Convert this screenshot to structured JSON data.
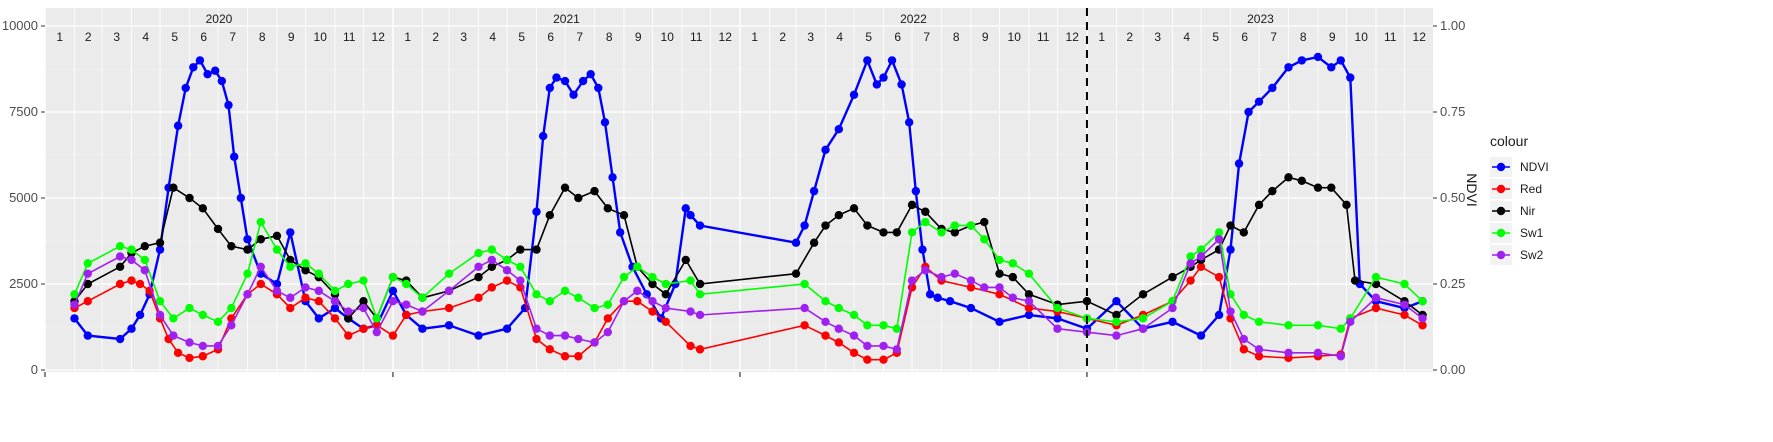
{
  "chart_data": {
    "type": "line",
    "title": "",
    "xlabel": "",
    "ylabel": "",
    "y2label": "NDVI",
    "ylim": [
      0,
      10000
    ],
    "y2lim": [
      0,
      1
    ],
    "xlim": [
      "2020-01-01",
      "2023-12-31"
    ],
    "y_ticks": [
      "0",
      "2500",
      "5000",
      "7500",
      "10000"
    ],
    "y2_ticks": [
      "0.00",
      "0.25",
      "0.50",
      "0.75",
      "1.00"
    ],
    "grid": true,
    "years": [
      "2020",
      "2021",
      "2022",
      "2023"
    ],
    "months": [
      "1",
      "2",
      "3",
      "4",
      "5",
      "6",
      "7",
      "8",
      "9",
      "10",
      "11",
      "12"
    ],
    "vline_date": "2023-01-01",
    "legend": {
      "title": "colour",
      "position": "right"
    },
    "series": [
      {
        "name": "NDVI",
        "color": "#0000ff",
        "axis": "right",
        "x": [
          "2020-02-01",
          "2020-02-15",
          "2020-03-20",
          "2020-04-01",
          "2020-04-10",
          "2020-04-20",
          "2020-05-01",
          "2020-05-10",
          "2020-05-20",
          "2020-05-28",
          "2020-06-05",
          "2020-06-12",
          "2020-06-20",
          "2020-06-28",
          "2020-07-05",
          "2020-07-12",
          "2020-07-18",
          "2020-07-25",
          "2020-08-01",
          "2020-08-15",
          "2020-09-01",
          "2020-09-15",
          "2020-10-01",
          "2020-10-15",
          "2020-11-01",
          "2020-11-15",
          "2020-12-01",
          "2020-12-15",
          "2021-01-01",
          "2021-01-15",
          "2021-02-01",
          "2021-03-01",
          "2021-04-01",
          "2021-05-01",
          "2021-05-20",
          "2021-06-01",
          "2021-06-08",
          "2021-06-15",
          "2021-06-22",
          "2021-07-01",
          "2021-07-10",
          "2021-07-20",
          "2021-07-28",
          "2021-08-05",
          "2021-08-12",
          "2021-08-20",
          "2021-08-28",
          "2021-09-10",
          "2021-09-25",
          "2021-10-10",
          "2021-10-25",
          "2021-11-05",
          "2021-11-10",
          "2021-11-20",
          "2022-03-01",
          "2022-03-10",
          "2022-03-20",
          "2022-04-01",
          "2022-04-15",
          "2022-05-01",
          "2022-05-15",
          "2022-05-25",
          "2022-06-01",
          "2022-06-10",
          "2022-06-20",
          "2022-06-28",
          "2022-07-05",
          "2022-07-12",
          "2022-07-20",
          "2022-07-28",
          "2022-08-10",
          "2022-09-01",
          "2022-10-01",
          "2022-11-01",
          "2022-12-01",
          "2023-01-01",
          "2023-02-01",
          "2023-03-01",
          "2023-04-01",
          "2023-05-01",
          "2023-05-20",
          "2023-06-01",
          "2023-06-10",
          "2023-06-20",
          "2023-07-01",
          "2023-07-15",
          "2023-08-01",
          "2023-08-15",
          "2023-09-01",
          "2023-09-15",
          "2023-09-25",
          "2023-10-05",
          "2023-10-15",
          "2023-11-01",
          "2023-12-01",
          "2023-12-20"
        ],
        "values": [
          0.15,
          0.1,
          0.09,
          0.12,
          0.16,
          0.22,
          0.35,
          0.53,
          0.71,
          0.82,
          0.88,
          0.9,
          0.86,
          0.87,
          0.84,
          0.77,
          0.62,
          0.5,
          0.38,
          0.28,
          0.25,
          0.4,
          0.2,
          0.15,
          0.18,
          0.15,
          0.12,
          0.13,
          0.23,
          0.16,
          0.12,
          0.13,
          0.1,
          0.12,
          0.18,
          0.46,
          0.68,
          0.82,
          0.85,
          0.84,
          0.8,
          0.84,
          0.86,
          0.82,
          0.72,
          0.56,
          0.4,
          0.3,
          0.22,
          0.15,
          0.25,
          0.47,
          0.45,
          0.42,
          0.37,
          0.42,
          0.52,
          0.64,
          0.7,
          0.8,
          0.9,
          0.83,
          0.85,
          0.9,
          0.83,
          0.72,
          0.52,
          0.35,
          0.22,
          0.21,
          0.2,
          0.18,
          0.14,
          0.16,
          0.15,
          0.12,
          0.2,
          0.12,
          0.14,
          0.1,
          0.16,
          0.35,
          0.6,
          0.75,
          0.78,
          0.82,
          0.88,
          0.9,
          0.91,
          0.88,
          0.9,
          0.85,
          0.25,
          0.2,
          0.18,
          0.2
        ]
      },
      {
        "name": "Red",
        "color": "#ff0000",
        "axis": "left",
        "x": [
          "2020-02-01",
          "2020-02-15",
          "2020-03-20",
          "2020-04-01",
          "2020-04-10",
          "2020-04-20",
          "2020-05-01",
          "2020-05-10",
          "2020-05-20",
          "2020-06-01",
          "2020-06-15",
          "2020-07-01",
          "2020-07-15",
          "2020-08-01",
          "2020-08-15",
          "2020-09-01",
          "2020-09-15",
          "2020-10-01",
          "2020-10-15",
          "2020-11-01",
          "2020-11-15",
          "2020-12-01",
          "2020-12-15",
          "2021-01-01",
          "2021-01-15",
          "2021-02-01",
          "2021-03-01",
          "2021-04-01",
          "2021-04-15",
          "2021-05-01",
          "2021-05-15",
          "2021-06-01",
          "2021-06-15",
          "2021-07-01",
          "2021-07-15",
          "2021-08-01",
          "2021-08-15",
          "2021-09-01",
          "2021-09-15",
          "2021-10-01",
          "2021-10-15",
          "2021-11-10",
          "2021-11-20",
          "2022-03-10",
          "2022-04-01",
          "2022-04-15",
          "2022-05-01",
          "2022-05-15",
          "2022-06-01",
          "2022-06-15",
          "2022-07-01",
          "2022-07-15",
          "2022-08-01",
          "2022-09-01",
          "2022-10-01",
          "2022-11-01",
          "2022-12-01",
          "2023-01-01",
          "2023-02-01",
          "2023-03-01",
          "2023-04-01",
          "2023-04-20",
          "2023-05-01",
          "2023-05-20",
          "2023-06-01",
          "2023-06-15",
          "2023-07-01",
          "2023-08-01",
          "2023-09-01",
          "2023-09-25",
          "2023-10-05",
          "2023-11-01",
          "2023-12-01",
          "2023-12-20"
        ],
        "values": [
          1800,
          2000,
          2500,
          2600,
          2500,
          2300,
          1500,
          900,
          500,
          350,
          400,
          600,
          1500,
          2200,
          2500,
          2200,
          1800,
          2100,
          2000,
          1500,
          1000,
          1200,
          1300,
          1000,
          1600,
          1700,
          1800,
          2100,
          2400,
          2600,
          2400,
          900,
          600,
          400,
          400,
          800,
          1500,
          2000,
          2000,
          1700,
          1400,
          700,
          600,
          1300,
          1000,
          800,
          500,
          300,
          300,
          500,
          2400,
          3000,
          2600,
          2400,
          2200,
          1800,
          1700,
          1500,
          1300,
          1600,
          2000,
          2600,
          3000,
          2700,
          1500,
          600,
          400,
          350,
          400,
          450,
          1500,
          1800,
          1600,
          1300
        ]
      },
      {
        "name": "Nir",
        "color": "#000000",
        "axis": "left",
        "x": [
          "2020-02-01",
          "2020-02-15",
          "2020-03-20",
          "2020-04-01",
          "2020-04-15",
          "2020-05-01",
          "2020-05-15",
          "2020-06-01",
          "2020-06-15",
          "2020-07-01",
          "2020-07-15",
          "2020-08-01",
          "2020-08-15",
          "2020-09-01",
          "2020-09-15",
          "2020-10-01",
          "2020-10-15",
          "2020-11-01",
          "2020-11-15",
          "2020-12-01",
          "2020-12-15",
          "2021-01-01",
          "2021-01-15",
          "2021-02-01",
          "2021-03-01",
          "2021-04-01",
          "2021-04-15",
          "2021-05-01",
          "2021-05-15",
          "2021-06-01",
          "2021-06-15",
          "2021-07-01",
          "2021-07-15",
          "2021-08-01",
          "2021-08-15",
          "2021-09-01",
          "2021-09-15",
          "2021-10-01",
          "2021-10-15",
          "2021-11-05",
          "2021-11-20",
          "2022-03-01",
          "2022-03-20",
          "2022-04-01",
          "2022-04-15",
          "2022-05-01",
          "2022-05-15",
          "2022-06-01",
          "2022-06-15",
          "2022-07-01",
          "2022-07-15",
          "2022-08-01",
          "2022-08-15",
          "2022-09-01",
          "2022-09-15",
          "2022-10-01",
          "2022-10-15",
          "2022-11-01",
          "2022-12-01",
          "2023-01-01",
          "2023-02-01",
          "2023-03-01",
          "2023-04-01",
          "2023-04-20",
          "2023-05-01",
          "2023-05-20",
          "2023-06-01",
          "2023-06-15",
          "2023-07-01",
          "2023-07-15",
          "2023-08-01",
          "2023-08-15",
          "2023-09-01",
          "2023-09-15",
          "2023-10-01",
          "2023-10-10",
          "2023-11-01",
          "2023-12-01",
          "2023-12-20"
        ],
        "values": [
          2000,
          2500,
          3000,
          3400,
          3600,
          3700,
          5300,
          5000,
          4700,
          4100,
          3600,
          3500,
          3800,
          3900,
          3200,
          2900,
          2700,
          2200,
          1500,
          2000,
          1500,
          2700,
          2600,
          2100,
          2300,
          2700,
          3000,
          3200,
          3500,
          3500,
          4500,
          5300,
          5000,
          5200,
          4700,
          4500,
          3000,
          2500,
          2200,
          3200,
          2500,
          2800,
          3700,
          4200,
          4500,
          4700,
          4200,
          4000,
          4000,
          4800,
          4600,
          4100,
          4000,
          4200,
          4300,
          2800,
          2700,
          2200,
          1900,
          2000,
          1600,
          2200,
          2700,
          3000,
          3200,
          3500,
          4200,
          4000,
          4800,
          5200,
          5600,
          5500,
          5300,
          5300,
          4800,
          2600,
          2500,
          2000,
          1600
        ]
      },
      {
        "name": "Sw1",
        "color": "#00ff00",
        "axis": "left",
        "x": [
          "2020-02-01",
          "2020-02-15",
          "2020-03-20",
          "2020-04-01",
          "2020-04-15",
          "2020-05-01",
          "2020-05-15",
          "2020-06-01",
          "2020-06-15",
          "2020-07-01",
          "2020-07-15",
          "2020-08-01",
          "2020-08-15",
          "2020-09-01",
          "2020-09-15",
          "2020-10-01",
          "2020-10-15",
          "2020-11-01",
          "2020-11-15",
          "2020-12-01",
          "2020-12-15",
          "2021-01-01",
          "2021-01-15",
          "2021-02-01",
          "2021-03-01",
          "2021-04-01",
          "2021-04-15",
          "2021-05-01",
          "2021-05-15",
          "2021-06-01",
          "2021-06-15",
          "2021-07-01",
          "2021-07-15",
          "2021-08-01",
          "2021-08-15",
          "2021-09-01",
          "2021-09-15",
          "2021-10-01",
          "2021-10-15",
          "2021-11-10",
          "2021-11-20",
          "2022-03-10",
          "2022-04-01",
          "2022-04-15",
          "2022-05-01",
          "2022-05-15",
          "2022-06-01",
          "2022-06-15",
          "2022-07-01",
          "2022-07-15",
          "2022-08-01",
          "2022-08-15",
          "2022-09-01",
          "2022-09-15",
          "2022-10-01",
          "2022-10-15",
          "2022-11-01",
          "2022-12-01",
          "2023-01-01",
          "2023-02-01",
          "2023-03-01",
          "2023-04-01",
          "2023-04-20",
          "2023-05-01",
          "2023-05-20",
          "2023-06-01",
          "2023-06-15",
          "2023-07-01",
          "2023-08-01",
          "2023-09-01",
          "2023-09-25",
          "2023-10-05",
          "2023-11-01",
          "2023-12-01",
          "2023-12-20"
        ],
        "values": [
          2200,
          3100,
          3600,
          3500,
          3200,
          2000,
          1500,
          1800,
          1600,
          1400,
          1800,
          2800,
          4300,
          3500,
          3000,
          3100,
          2800,
          2300,
          2500,
          2600,
          1500,
          2700,
          2500,
          2100,
          2800,
          3400,
          3500,
          3200,
          3000,
          2200,
          2000,
          2300,
          2100,
          1800,
          1900,
          2700,
          3000,
          2700,
          2500,
          2600,
          2200,
          2500,
          2000,
          1800,
          1600,
          1300,
          1300,
          1200,
          4000,
          4300,
          4000,
          4200,
          4200,
          3800,
          3200,
          3100,
          2800,
          1800,
          1500,
          1400,
          1500,
          2000,
          3300,
          3500,
          4000,
          2200,
          1600,
          1400,
          1300,
          1300,
          1200,
          1500,
          2700,
          2500,
          2000
        ]
      },
      {
        "name": "Sw2",
        "color": "#a020f0",
        "axis": "left",
        "x": [
          "2020-02-01",
          "2020-02-15",
          "2020-03-20",
          "2020-04-01",
          "2020-04-15",
          "2020-05-01",
          "2020-05-15",
          "2020-06-01",
          "2020-06-15",
          "2020-07-01",
          "2020-07-15",
          "2020-08-01",
          "2020-08-15",
          "2020-09-01",
          "2020-09-15",
          "2020-10-01",
          "2020-10-15",
          "2020-11-01",
          "2020-11-15",
          "2020-12-01",
          "2020-12-15",
          "2021-01-01",
          "2021-01-15",
          "2021-02-01",
          "2021-03-01",
          "2021-04-01",
          "2021-04-15",
          "2021-05-01",
          "2021-05-15",
          "2021-06-01",
          "2021-06-15",
          "2021-07-01",
          "2021-07-15",
          "2021-08-01",
          "2021-08-15",
          "2021-09-01",
          "2021-09-15",
          "2021-10-01",
          "2021-10-15",
          "2021-11-10",
          "2021-11-20",
          "2022-03-10",
          "2022-04-01",
          "2022-04-15",
          "2022-05-01",
          "2022-05-15",
          "2022-06-01",
          "2022-06-15",
          "2022-07-01",
          "2022-07-15",
          "2022-08-01",
          "2022-08-15",
          "2022-09-01",
          "2022-09-15",
          "2022-10-01",
          "2022-10-15",
          "2022-11-01",
          "2022-12-01",
          "2023-01-01",
          "2023-02-01",
          "2023-03-01",
          "2023-04-01",
          "2023-04-20",
          "2023-05-01",
          "2023-05-20",
          "2023-06-01",
          "2023-06-15",
          "2023-07-01",
          "2023-08-01",
          "2023-09-01",
          "2023-09-25",
          "2023-10-05",
          "2023-11-01",
          "2023-12-01",
          "2023-12-20"
        ],
        "values": [
          1900,
          2800,
          3300,
          3200,
          2900,
          1600,
          1000,
          800,
          700,
          700,
          1300,
          2200,
          3000,
          2300,
          2100,
          2400,
          2300,
          2000,
          1700,
          1800,
          1100,
          2000,
          1900,
          1700,
          2300,
          3000,
          3200,
          2900,
          2600,
          1200,
          1000,
          1000,
          900,
          800,
          1100,
          2000,
          2300,
          2000,
          1800,
          1700,
          1600,
          1800,
          1400,
          1200,
          1000,
          700,
          700,
          600,
          2600,
          2900,
          2700,
          2800,
          2600,
          2400,
          2400,
          2100,
          2000,
          1200,
          1100,
          1000,
          1200,
          1800,
          3100,
          3300,
          3800,
          1700,
          900,
          600,
          500,
          500,
          400,
          1400,
          2100,
          1900,
          1500
        ]
      }
    ]
  }
}
